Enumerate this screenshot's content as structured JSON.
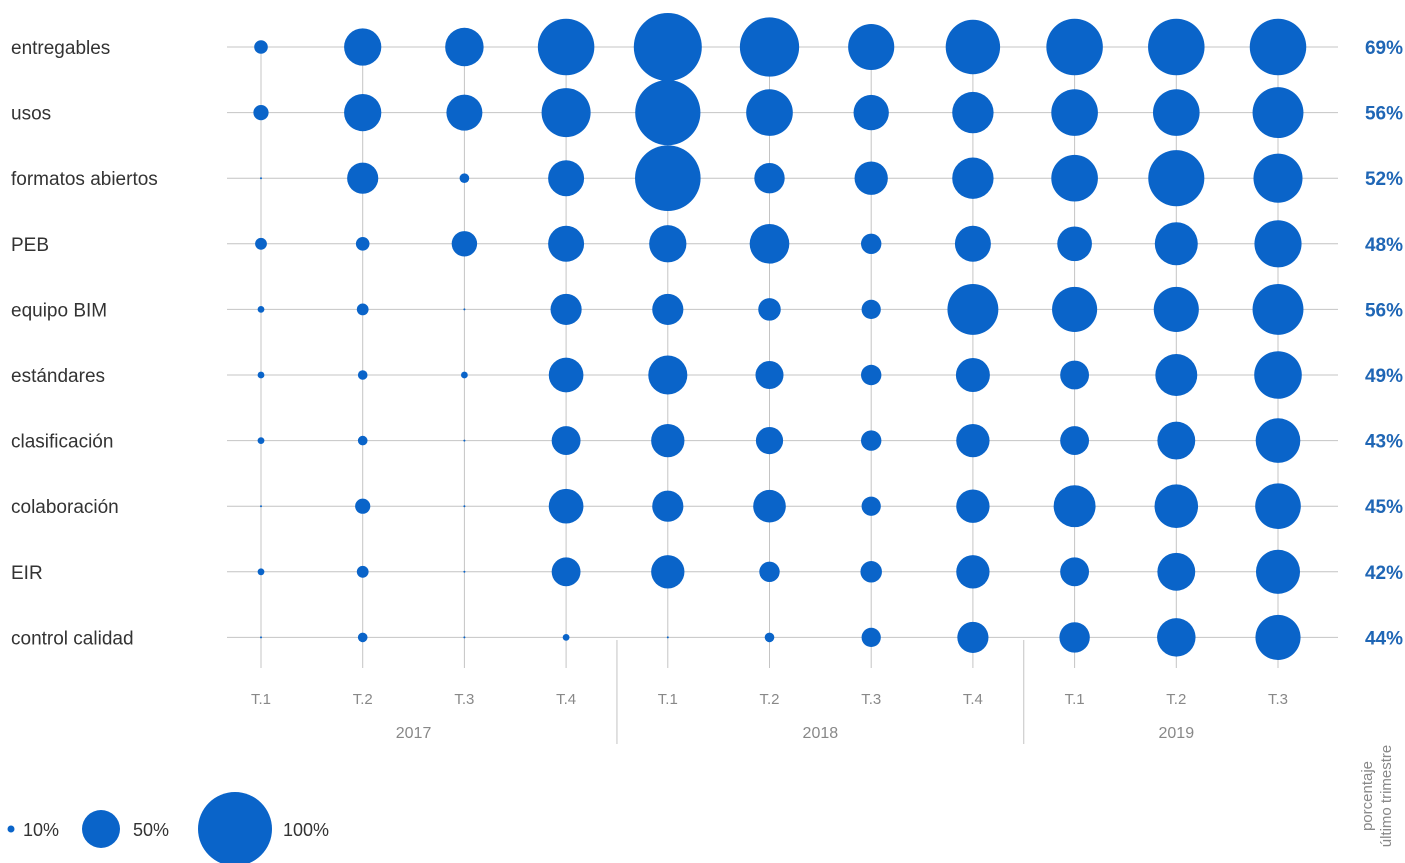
{
  "chart_data": {
    "type": "bubble-matrix",
    "rows": [
      "entregables",
      "usos",
      "formatos abiertos",
      "PEB",
      "equipo BIM",
      "estándares",
      "clasificación",
      "colaboración",
      "EIR",
      "control calidad"
    ],
    "columns": [
      {
        "quarter": "T.1",
        "year": "2017"
      },
      {
        "quarter": "T.2",
        "year": "2017"
      },
      {
        "quarter": "T.3",
        "year": "2017"
      },
      {
        "quarter": "T.4",
        "year": "2017"
      },
      {
        "quarter": "T.1",
        "year": "2018"
      },
      {
        "quarter": "T.2",
        "year": "2018"
      },
      {
        "quarter": "T.3",
        "year": "2018"
      },
      {
        "quarter": "T.4",
        "year": "2018"
      },
      {
        "quarter": "T.1",
        "year": "2019"
      },
      {
        "quarter": "T.2",
        "year": "2019"
      },
      {
        "quarter": "T.3",
        "year": "2019"
      }
    ],
    "years": [
      "2017",
      "2018",
      "2019"
    ],
    "values": [
      [
        4,
        30,
        32,
        69,
        100,
        76,
        46,
        64,
        69,
        69,
        69
      ],
      [
        5,
        30,
        28,
        52,
        92,
        47,
        27,
        37,
        47,
        47,
        56
      ],
      [
        0,
        21,
        2,
        28,
        93,
        20,
        24,
        37,
        47,
        68,
        52
      ],
      [
        3,
        4,
        14,
        28,
        30,
        34,
        9,
        28,
        26,
        40,
        48
      ],
      [
        1,
        3,
        0,
        21,
        21,
        11,
        8,
        56,
        44,
        44,
        56
      ],
      [
        1,
        2,
        1,
        26,
        33,
        17,
        9,
        25,
        18,
        38,
        49
      ],
      [
        1,
        2,
        0,
        18,
        24,
        16,
        9,
        24,
        18,
        31,
        43
      ],
      [
        0,
        5,
        0,
        26,
        21,
        23,
        8,
        24,
        38,
        41,
        45
      ],
      [
        1,
        3,
        0,
        18,
        24,
        9,
        10,
        24,
        18,
        31,
        42
      ],
      [
        0,
        2,
        0,
        1,
        0,
        2,
        8,
        21,
        20,
        32,
        44
      ]
    ],
    "last_quarter_pct": [
      "69%",
      "56%",
      "52%",
      "48%",
      "56%",
      "49%",
      "43%",
      "45%",
      "42%",
      "44%"
    ],
    "side_label": [
      "porcentaje",
      "último trimestre"
    ],
    "legend": [
      {
        "value": 10,
        "label": "10%"
      },
      {
        "value": 50,
        "label": "50%"
      },
      {
        "value": 100,
        "label": "100%"
      }
    ],
    "colors": {
      "bubble": "#0a64c9",
      "pct_text": "#1f66b5",
      "grid": "#c4c4c4"
    }
  }
}
